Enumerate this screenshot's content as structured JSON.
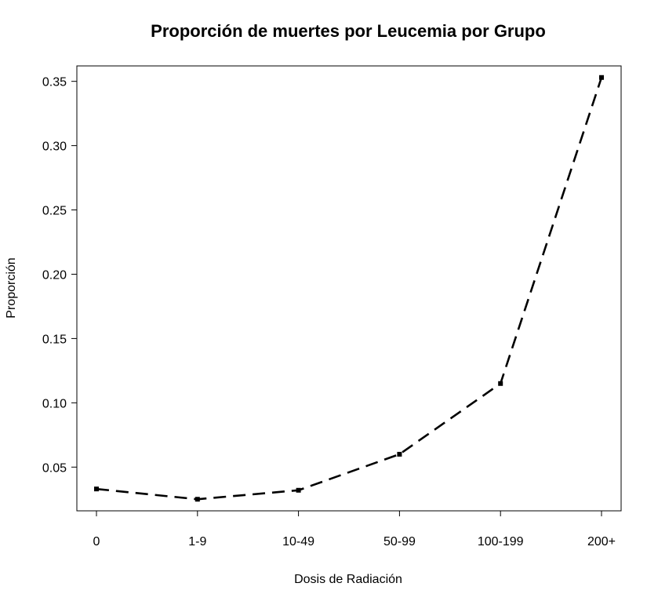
{
  "chart_data": {
    "type": "line",
    "title": "Proporción de muertes por Leucemia por Grupo",
    "xlabel": "Dosis de Radiación",
    "ylabel": "Proporción",
    "categories": [
      "0",
      "1-9",
      "10-49",
      "50-99",
      "100-199",
      "200+"
    ],
    "series": [
      {
        "values": [
          0.033,
          0.025,
          0.032,
          0.06,
          0.115,
          0.353
        ]
      }
    ],
    "yticks": [
      "0.05",
      "0.10",
      "0.15",
      "0.20",
      "0.25",
      "0.30",
      "0.35"
    ],
    "ylim": [
      0.016,
      0.362
    ],
    "line_style": "dashed",
    "marker": "square",
    "grid": false,
    "legend": "none",
    "colors": {
      "line": "#000000",
      "axis": "#000000"
    }
  }
}
